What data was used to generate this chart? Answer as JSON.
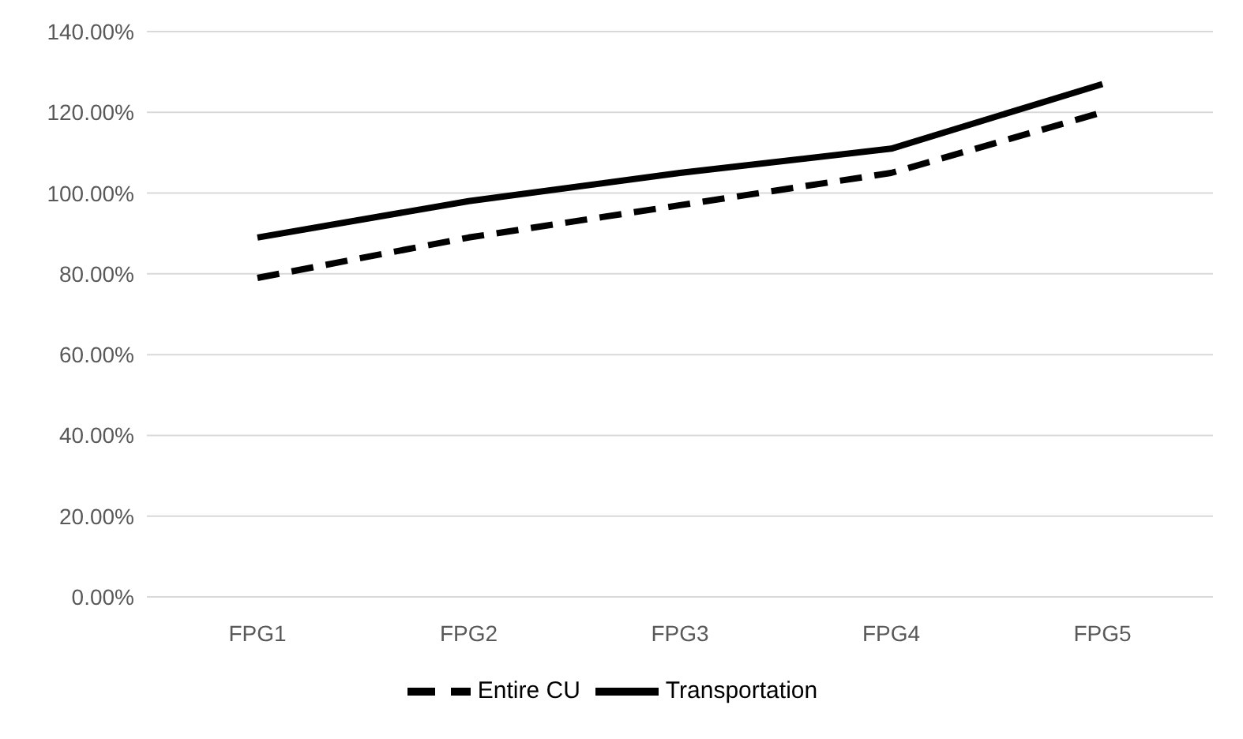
{
  "chart_data": {
    "type": "line",
    "categories": [
      "FPG1",
      "FPG2",
      "FPG3",
      "FPG4",
      "FPG5"
    ],
    "series": [
      {
        "name": "Entire CU",
        "color": "#000000",
        "line_style": "dashed",
        "values": [
          79,
          89,
          97,
          105,
          120
        ]
      },
      {
        "name": "Transportation",
        "color": "#000000",
        "line_style": "solid",
        "values": [
          89,
          98,
          105,
          111,
          127
        ]
      }
    ],
    "ylim": [
      0,
      140
    ],
    "yticks": [
      {
        "value": 0,
        "label": "0.00%"
      },
      {
        "value": 20,
        "label": "20.00%"
      },
      {
        "value": 40,
        "label": "40.00%"
      },
      {
        "value": 60,
        "label": "60.00%"
      },
      {
        "value": 80,
        "label": "80.00%"
      },
      {
        "value": 100,
        "label": "100.00%"
      },
      {
        "value": 120,
        "label": "120.00%"
      },
      {
        "value": 140,
        "label": "140.00%"
      }
    ],
    "grid": "y",
    "legend": "bottom",
    "marker": "none"
  }
}
